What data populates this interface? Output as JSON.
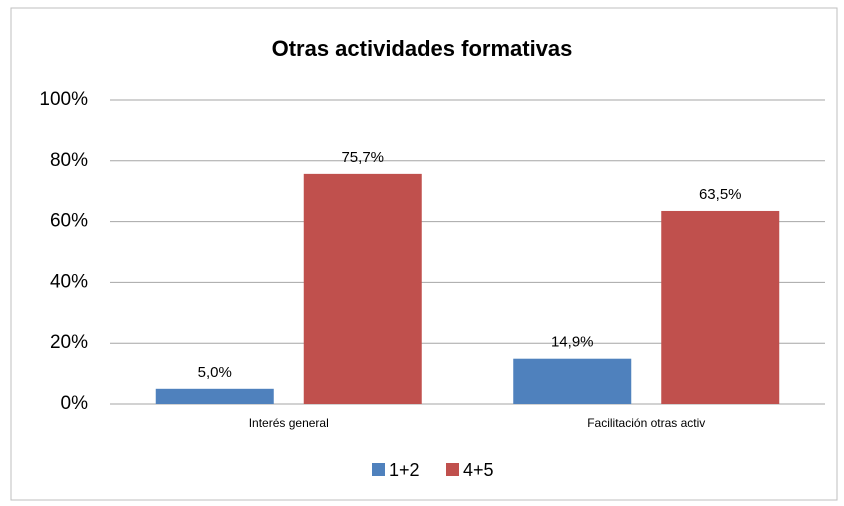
{
  "chart_data": {
    "type": "bar",
    "title": "Otras actividades formativas",
    "categories": [
      "Interés general",
      "Facilitación otras activ"
    ],
    "series": [
      {
        "name": "1+2",
        "color": "#4f81bd",
        "values": [
          5.0,
          14.9
        ],
        "value_labels": [
          "5,0%",
          "14,9%"
        ]
      },
      {
        "name": "4+5",
        "color": "#c0504d",
        "values": [
          75.7,
          63.5
        ],
        "value_labels": [
          "75,7%",
          "63,5%"
        ]
      }
    ],
    "ylim": [
      0,
      100
    ],
    "yticks": [
      {
        "value": 0,
        "label": "0%"
      },
      {
        "value": 20,
        "label": "20%"
      },
      {
        "value": 40,
        "label": "40%"
      },
      {
        "value": 60,
        "label": "60%"
      },
      {
        "value": 80,
        "label": "80%"
      },
      {
        "value": 100,
        "label": "100%"
      }
    ],
    "grid": true,
    "legend": "bottom"
  }
}
